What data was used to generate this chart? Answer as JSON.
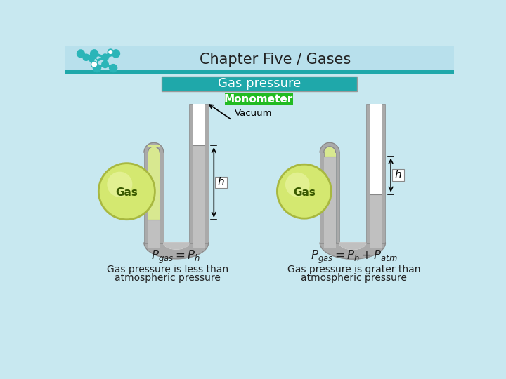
{
  "title": "Chapter Five / Gases",
  "subtitle": "Gas pressure",
  "subtitle2": "Monometer",
  "bg_color": "#c8e8f0",
  "header_bg": "#b8e0ec",
  "teal_bar_color": "#1fa8aa",
  "green_box_color": "#22bb22",
  "tube_wall_color": "#aaaaaa",
  "tube_wall_edge": "#888888",
  "tube_inner_fill_left": "#d8e890",
  "tube_inner_fill_right": "#c8c8c8",
  "mercury_color": "#c0c0c0",
  "gas_ball_color": "#d4e870",
  "gas_ball_edge": "#a8b840",
  "gas_ball_highlight": "#e8f4a0",
  "formula_left": "$P_{gas} = P_h$",
  "formula_right": "$P_{gas} = P_h + P_{atm}$",
  "caption_left1": "Gas pressure is less than",
  "caption_left2": "atmospheric pressure",
  "caption_right1": "Gas pressure is grater than",
  "caption_right2": "atmospheric pressure",
  "vacuum_label": "Vacuum",
  "gas_label": "Gas",
  "h_label": "h"
}
